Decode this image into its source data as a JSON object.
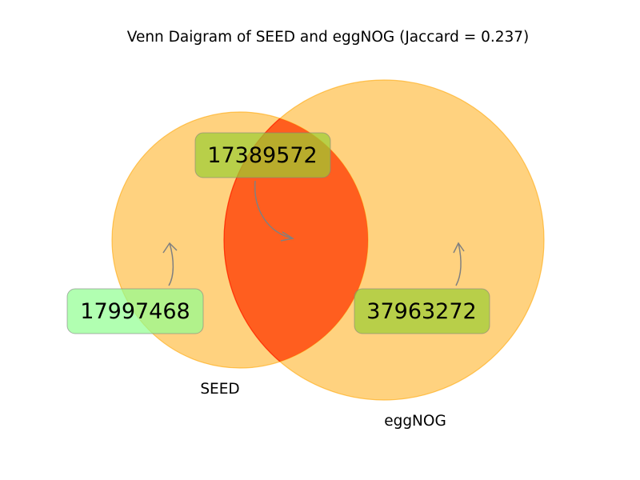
{
  "title": "Venn Daigram of SEED and eggNOG (Jaccard = 0.237)",
  "sets": [
    {
      "name": "SEED",
      "label": "SEED",
      "color": "#ffa500"
    },
    {
      "name": "eggNOG",
      "label": "eggNOG",
      "color": "#ffa500"
    }
  ],
  "regions": {
    "seed_only": {
      "count": "17997468",
      "box_color": "#90ff90"
    },
    "intersection": {
      "count": "17389572",
      "box_color": "#9acd32",
      "fill": "#ff0000"
    },
    "eggnog_only": {
      "count": "37963272",
      "box_color": "#9acd32"
    }
  },
  "colors": {
    "circle": "#ffa500",
    "intersection": "#ff0000",
    "arrow": "#808080"
  }
}
